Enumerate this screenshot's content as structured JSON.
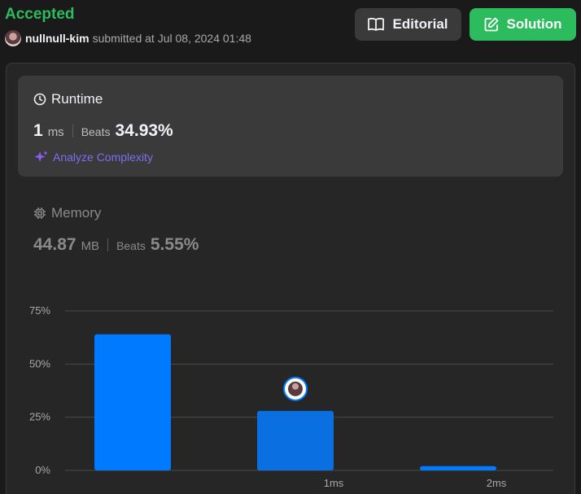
{
  "header": {
    "status": "Accepted",
    "username": "nullnull-kim",
    "submitted_text": "submitted at Jul 08, 2024 01:48",
    "editorial_label": "Editorial",
    "solution_label": "Solution"
  },
  "runtime": {
    "title": "Runtime",
    "value": "1",
    "unit": "ms",
    "beats_label": "Beats",
    "beats_value": "34.93%",
    "analyze_label": "Analyze Complexity"
  },
  "memory": {
    "title": "Memory",
    "value": "44.87",
    "unit": "MB",
    "beats_label": "Beats",
    "beats_value": "5.55%"
  },
  "colors": {
    "accepted": "#2cbb5d",
    "bar": "#007aff",
    "bar_user": "#0a6fe0"
  },
  "chart_data": {
    "type": "bar",
    "categories": [
      "",
      "1ms",
      "2ms"
    ],
    "values": [
      64,
      28,
      2
    ],
    "yticks": [
      "75%",
      "50%",
      "25%",
      "0%"
    ],
    "ylim": [
      0,
      75
    ],
    "user_bar_index": 1
  }
}
